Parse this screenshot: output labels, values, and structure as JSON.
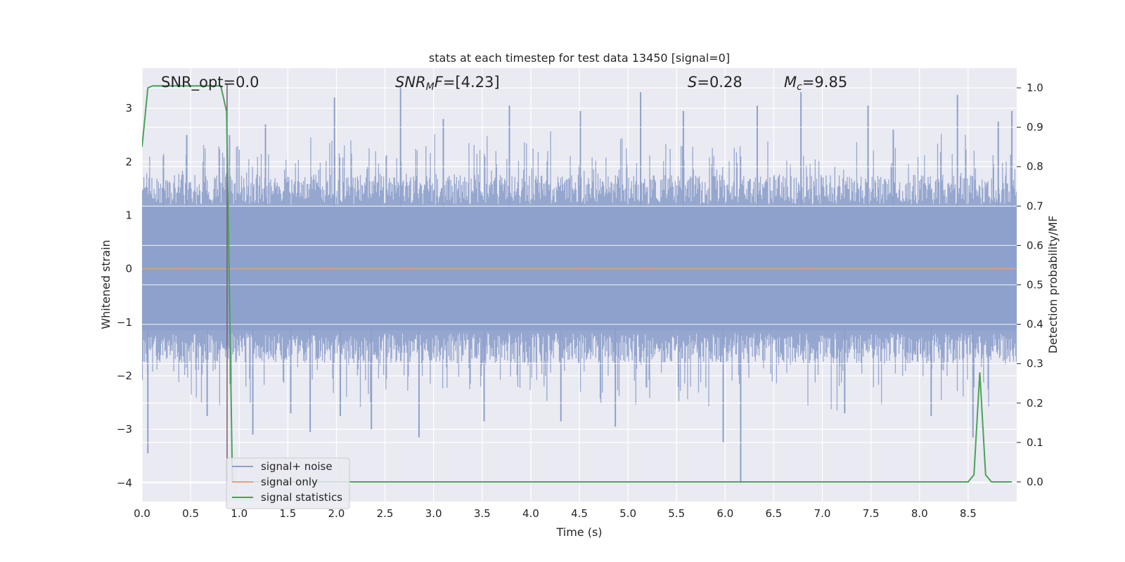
{
  "chart_data": {
    "type": "line",
    "title": "stats at each timestep for test data 13450 [signal=0]",
    "xlabel": "Time (s)",
    "ylabel": "Whitened strain",
    "ylabel_right": "Detection probability/MF",
    "xlim": [
      0.0,
      9.0
    ],
    "ylim_left": [
      -4.35,
      3.75
    ],
    "ylim_right": [
      -0.05,
      1.05
    ],
    "x_ticks": [
      "0.0",
      "0.5",
      "1.0",
      "1.5",
      "2.0",
      "2.5",
      "3.0",
      "3.5",
      "4.0",
      "4.5",
      "5.0",
      "5.5",
      "6.0",
      "6.5",
      "7.0",
      "7.5",
      "8.0",
      "8.5"
    ],
    "x_tick_values": [
      0.0,
      0.5,
      1.0,
      1.5,
      2.0,
      2.5,
      3.0,
      3.5,
      4.0,
      4.5,
      5.0,
      5.5,
      6.0,
      6.5,
      7.0,
      7.5,
      8.0,
      8.5
    ],
    "y_ticks_left": [
      "−4",
      "−3",
      "−2",
      "−1",
      "0",
      "1",
      "2",
      "3"
    ],
    "y_tick_values_left": [
      -4,
      -3,
      -2,
      -1,
      0,
      1,
      2,
      3
    ],
    "y_ticks_right": [
      "0.0",
      "0.1",
      "0.2",
      "0.3",
      "0.4",
      "0.5",
      "0.6",
      "0.7",
      "0.8",
      "0.9",
      "1.0"
    ],
    "y_tick_values_right": [
      0.0,
      0.1,
      0.2,
      0.3,
      0.4,
      0.5,
      0.6,
      0.7,
      0.8,
      0.9,
      1.0
    ],
    "grid": true,
    "legend_position": "bottom-left",
    "annotations": [
      {
        "label": "SNR_opt=0.0",
        "x": 0.19,
        "y": 3.45
      },
      {
        "label": "SNR_MF=[4.23]",
        "x": 2.6,
        "y": 3.45
      },
      {
        "label": "S=0.28",
        "x": 5.6,
        "y": 3.45
      },
      {
        "label": "M_c=9.85",
        "x": 6.6,
        "y": 3.45
      }
    ],
    "series": [
      {
        "name": "signal+ noise",
        "color": "#8da0cb",
        "axis": "left",
        "envelope": {
          "typical_upper": 1.6,
          "typical_lower": -1.6
        },
        "peaks": [
          [
            0.06,
            -3.45
          ],
          [
            0.22,
            2.1
          ],
          [
            0.46,
            2.5
          ],
          [
            0.67,
            -2.75
          ],
          [
            0.9,
            2.5
          ],
          [
            1.14,
            -3.1
          ],
          [
            1.27,
            2.7
          ],
          [
            1.53,
            -2.7
          ],
          [
            1.73,
            -3.05
          ],
          [
            1.98,
            3.2
          ],
          [
            2.04,
            -2.75
          ],
          [
            2.36,
            -3.0
          ],
          [
            2.66,
            3.4
          ],
          [
            2.85,
            -3.15
          ],
          [
            3.1,
            2.8
          ],
          [
            3.52,
            -2.85
          ],
          [
            3.78,
            3.05
          ],
          [
            4.31,
            -2.85
          ],
          [
            4.51,
            2.95
          ],
          [
            4.87,
            -2.95
          ],
          [
            5.13,
            3.3
          ],
          [
            5.57,
            2.95
          ],
          [
            5.98,
            -3.25
          ],
          [
            6.16,
            -4.0
          ],
          [
            6.33,
            3.05
          ],
          [
            6.78,
            3.3
          ],
          [
            7.23,
            -2.7
          ],
          [
            7.47,
            3.05
          ],
          [
            7.73,
            2.6
          ],
          [
            8.12,
            -2.75
          ],
          [
            8.39,
            3.25
          ],
          [
            8.55,
            -3.15
          ],
          [
            8.81,
            2.75
          ],
          [
            8.95,
            2.95
          ]
        ]
      },
      {
        "name": "signal only",
        "color": "#e5a07c",
        "axis": "left",
        "x": [
          0.0,
          9.0
        ],
        "y": [
          0.0,
          0.0
        ]
      },
      {
        "name": "signal statistics",
        "color": "#4aa259",
        "axis": "right",
        "x": [
          0.0,
          0.06,
          0.11,
          0.2,
          0.5,
          0.81,
          0.87,
          0.93,
          1.2,
          4.0,
          8.0,
          8.5,
          8.56,
          8.62,
          8.68,
          8.74,
          8.95
        ],
        "y": [
          0.85,
          1.0,
          1.005,
          1.005,
          1.005,
          1.005,
          0.94,
          0.0,
          0.0,
          0.0,
          0.0,
          0.0,
          0.018,
          0.278,
          0.018,
          0.0,
          0.0
        ]
      }
    ]
  }
}
